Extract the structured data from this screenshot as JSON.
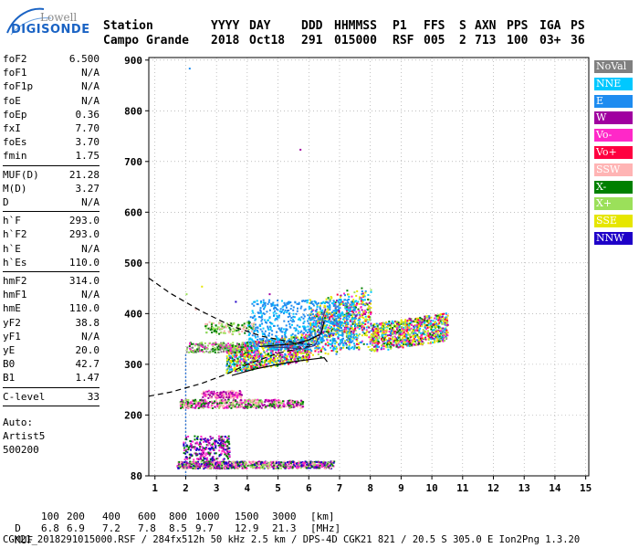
{
  "logo": {
    "line1": "Lowell",
    "line2": "DIGISONDE"
  },
  "header": {
    "labels": [
      "Station",
      "YYYY",
      "DAY",
      "DDD",
      "HHMMSS",
      "P1",
      "FFS",
      "S",
      "AXN",
      "PPS",
      "IGA",
      "PS"
    ],
    "values": [
      "Campo Grande",
      "2018",
      "Oct18",
      "291",
      "015000",
      "RSF",
      "005",
      "2",
      "713",
      "100",
      "03+",
      "36"
    ]
  },
  "sidebar": {
    "groups": [
      [
        [
          "foF2",
          "6.500"
        ],
        [
          "foF1",
          "N/A"
        ],
        [
          "foF1p",
          "N/A"
        ],
        [
          "foE",
          "N/A"
        ],
        [
          "foEp",
          "0.36"
        ],
        [
          "fxI",
          "7.70"
        ],
        [
          "foEs",
          "3.70"
        ],
        [
          "fmin",
          "1.75"
        ]
      ],
      [
        [
          "MUF(D)",
          "21.28"
        ],
        [
          "M(D)",
          "3.27"
        ],
        [
          "D",
          "N/A"
        ]
      ],
      [
        [
          "h`F",
          "293.0"
        ],
        [
          "h`F2",
          "293.0"
        ],
        [
          "h`E",
          "N/A"
        ],
        [
          "h`Es",
          "110.0"
        ]
      ],
      [
        [
          "hmF2",
          "314.0"
        ],
        [
          "hmF1",
          "N/A"
        ],
        [
          "hmE",
          "110.0"
        ],
        [
          "yF2",
          "38.8"
        ],
        [
          "yF1",
          "N/A"
        ],
        [
          "yE",
          "20.0"
        ],
        [
          "B0",
          "42.7"
        ],
        [
          "B1",
          "1.47"
        ]
      ],
      [
        [
          "C-level",
          "33"
        ]
      ]
    ],
    "auto_lines": [
      "Auto:",
      "Artist5",
      "500200"
    ]
  },
  "legend": [
    {
      "label": "NoVal",
      "color": "#808080"
    },
    {
      "label": "NNE",
      "color": "#00c8ff"
    },
    {
      "label": "E",
      "color": "#1e8cf0"
    },
    {
      "label": "W",
      "color": "#a000a0"
    },
    {
      "label": "Vo-",
      "color": "#ff28c8"
    },
    {
      "label": "Vo+",
      "color": "#ff0040"
    },
    {
      "label": "SSW",
      "color": "#ffb4b4"
    },
    {
      "label": "X-",
      "color": "#008000"
    },
    {
      "label": "X+",
      "color": "#9be05a"
    },
    {
      "label": "SSE",
      "color": "#e6e600"
    },
    {
      "label": "NNW",
      "color": "#1e00c8"
    }
  ],
  "footer": {
    "row_d_label": "D",
    "distances": [
      "100",
      "200",
      "400",
      "600",
      "800",
      "1000",
      "1500",
      "3000",
      "[km]"
    ],
    "row_muf_label": "MUF",
    "mufs": [
      "6.8",
      "6.9",
      "7.2",
      "7.8",
      "8.5",
      "9.7",
      "12.9",
      "21.3",
      "[MHz]"
    ],
    "file_line": "CGK21_2018291015000.RSF / 284fx512h 50 kHz 2.5 km / DPS-4D CGK21 821 / 20.5 S 305.0 E Ion2Png 1.3.20"
  },
  "chart_data": {
    "type": "scatter",
    "title": "",
    "xlabel": "",
    "ylabel": "",
    "xlim": [
      0.8,
      15.1
    ],
    "ylim": [
      80,
      905
    ],
    "xticks": [
      1,
      2,
      3,
      4,
      5,
      6,
      7,
      8,
      9,
      10,
      11,
      12,
      13,
      14,
      15
    ],
    "yticks": [
      80,
      200,
      300,
      400,
      500,
      600,
      700,
      800,
      900
    ],
    "grid": true,
    "legend_position": "right",
    "vertical_marker_x": 2.0,
    "profile_curves": [
      {
        "style": "dashed",
        "color": "#000000",
        "points": [
          [
            0.8,
            470
          ],
          [
            1.5,
            440
          ],
          [
            2.5,
            405
          ],
          [
            3.5,
            375
          ],
          [
            4.5,
            355
          ],
          [
            5.5,
            343
          ],
          [
            6.2,
            338
          ]
        ]
      },
      {
        "style": "dashed",
        "color": "#000000",
        "points": [
          [
            0.8,
            237
          ],
          [
            1.5,
            245
          ],
          [
            2.5,
            262
          ],
          [
            3.3,
            280
          ],
          [
            4.0,
            300
          ],
          [
            5.0,
            322
          ],
          [
            6.2,
            338
          ]
        ]
      },
      {
        "style": "solid",
        "color": "#000000",
        "points": [
          [
            3.5,
            278
          ],
          [
            4.2,
            290
          ],
          [
            5.0,
            300
          ],
          [
            5.6,
            306
          ],
          [
            6.1,
            310
          ],
          [
            6.5,
            313
          ],
          [
            6.6,
            305
          ]
        ]
      },
      {
        "style": "solid",
        "color": "#000000",
        "points": [
          [
            4.4,
            335
          ],
          [
            5.0,
            338
          ],
          [
            5.5,
            340
          ],
          [
            6.0,
            348
          ],
          [
            6.4,
            360
          ],
          [
            6.5,
            385
          ]
        ]
      },
      {
        "style": "solid",
        "color": "#3a3a8a",
        "points": [
          [
            4.5,
            335
          ],
          [
            5.2,
            333
          ],
          [
            5.8,
            330
          ],
          [
            6.2,
            337
          ],
          [
            6.35,
            355
          ],
          [
            6.45,
            390
          ],
          [
            6.55,
            410
          ]
        ]
      }
    ],
    "echo_clusters": [
      {
        "name": "F-layer main trace",
        "x_range": [
          3.3,
          10.5
        ],
        "y_range": [
          290,
          460
        ],
        "points_count": 2600,
        "colors": [
          "#e6e600",
          "#e6e600",
          "#e6e600",
          "#9be05a",
          "#1e8cf0",
          "#00c8ff",
          "#a000a0",
          "#ff28c8",
          "#ff0040",
          "#008000"
        ]
      },
      {
        "name": "F-layer cyan band",
        "x_range": [
          4.0,
          7.5
        ],
        "y_range": [
          330,
          430
        ],
        "points_count": 700,
        "colors": [
          "#00c8ff",
          "#1e8cf0",
          "#1e8cf0"
        ]
      },
      {
        "name": "Es trace 220km",
        "x_range": [
          1.8,
          5.8
        ],
        "y_range": [
          215,
          232
        ],
        "points_count": 500,
        "colors": [
          "#a000a0",
          "#ff28c8",
          "#008000",
          "#9be05a",
          "#ffb4b4"
        ]
      },
      {
        "name": "Es trace 240km",
        "x_range": [
          2.5,
          3.8
        ],
        "y_range": [
          235,
          250
        ],
        "points_count": 150,
        "colors": [
          "#a000a0",
          "#ffb4b4",
          "#ff28c8"
        ]
      },
      {
        "name": "E-layer low 100km",
        "x_range": [
          1.7,
          6.8
        ],
        "y_range": [
          96,
          110
        ],
        "points_count": 900,
        "colors": [
          "#a000a0",
          "#ff28c8",
          "#008000",
          "#1e00c8",
          "#9be05a",
          "#ffb4b4"
        ]
      },
      {
        "name": "E-layer 120-150km",
        "x_range": [
          1.9,
          3.4
        ],
        "y_range": [
          112,
          160
        ],
        "points_count": 260,
        "colors": [
          "#a000a0",
          "#1e00c8",
          "#ff28c8",
          "#008000"
        ]
      },
      {
        "name": "oblique trace 330km",
        "x_range": [
          2.0,
          4.0
        ],
        "y_range": [
          325,
          345
        ],
        "points_count": 200,
        "colors": [
          "#008000",
          "#9be05a",
          "#ff28c8",
          "#808080"
        ]
      },
      {
        "name": "oblique trace 370km",
        "x_range": [
          2.6,
          4.2
        ],
        "y_range": [
          360,
          385
        ],
        "points_count": 120,
        "colors": [
          "#9be05a",
          "#008000",
          "#ffb4b4"
        ]
      }
    ],
    "isolated_points": [
      {
        "x": 2.1,
        "y": 885,
        "color": "#1e8cf0"
      },
      {
        "x": 5.7,
        "y": 725,
        "color": "#a000a0"
      },
      {
        "x": 2.0,
        "y": 440,
        "color": "#9be05a"
      },
      {
        "x": 2.5,
        "y": 455,
        "color": "#e6e600"
      },
      {
        "x": 3.6,
        "y": 425,
        "color": "#1e00c8"
      },
      {
        "x": 4.7,
        "y": 440,
        "color": "#a000a0"
      },
      {
        "x": 2.3,
        "y": 410,
        "color": "#ffb4b4"
      },
      {
        "x": 10.3,
        "y": 395,
        "color": "#a000a0"
      }
    ]
  }
}
